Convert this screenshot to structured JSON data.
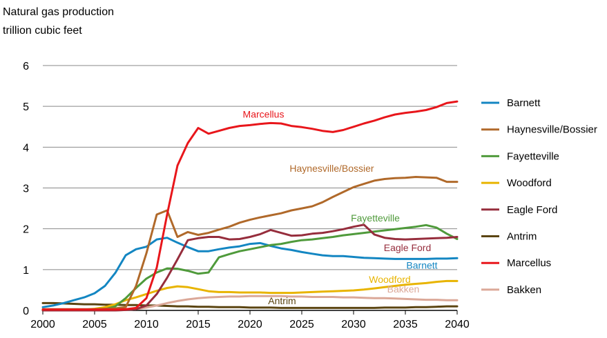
{
  "header": {
    "title": "Natural gas production",
    "unit": "trillion cubic feet"
  },
  "colors": {
    "Barnett": "#1386c2",
    "Haynesville/Bossier": "#b0692a",
    "Fayetteville": "#4f9a3b",
    "Woodford": "#e8b400",
    "Eagle Ford": "#962d3c",
    "Antrim": "#5a4410",
    "Marcellus": "#e8161b",
    "Bakken": "#dba898"
  },
  "chart_data": {
    "type": "line",
    "title": "Natural gas production",
    "ylabel": "trillion cubic feet",
    "xlabel": "",
    "xlim": [
      2000,
      2040
    ],
    "ylim": [
      0,
      6
    ],
    "grid": true,
    "legend_position": "right",
    "x_ticks": [
      "2000",
      "2005",
      "2010",
      "2015",
      "2020",
      "2025",
      "2030",
      "2035",
      "2040"
    ],
    "y_ticks": [
      "0",
      "1",
      "2",
      "3",
      "4",
      "5",
      "6"
    ],
    "x": [
      2000,
      2001,
      2002,
      2003,
      2004,
      2005,
      2006,
      2007,
      2008,
      2009,
      2010,
      2011,
      2012,
      2013,
      2014,
      2015,
      2016,
      2017,
      2018,
      2019,
      2020,
      2021,
      2022,
      2023,
      2024,
      2025,
      2026,
      2027,
      2028,
      2029,
      2030,
      2031,
      2032,
      2033,
      2034,
      2035,
      2036,
      2037,
      2038,
      2039,
      2040
    ],
    "series": [
      {
        "name": "Barnett",
        "values": [
          0.08,
          0.12,
          0.18,
          0.25,
          0.32,
          0.42,
          0.6,
          0.92,
          1.35,
          1.5,
          1.56,
          1.74,
          1.78,
          1.66,
          1.55,
          1.45,
          1.45,
          1.5,
          1.54,
          1.57,
          1.63,
          1.65,
          1.58,
          1.52,
          1.48,
          1.43,
          1.39,
          1.35,
          1.33,
          1.33,
          1.31,
          1.29,
          1.28,
          1.27,
          1.26,
          1.26,
          1.26,
          1.26,
          1.27,
          1.27,
          1.28
        ]
      },
      {
        "name": "Haynesville/Bossier",
        "values": [
          0.03,
          0.03,
          0.03,
          0.03,
          0.03,
          0.03,
          0.04,
          0.05,
          0.08,
          0.6,
          1.4,
          2.35,
          2.45,
          1.8,
          1.92,
          1.85,
          1.9,
          1.98,
          2.05,
          2.15,
          2.22,
          2.28,
          2.33,
          2.38,
          2.45,
          2.5,
          2.55,
          2.65,
          2.78,
          2.9,
          3.02,
          3.1,
          3.18,
          3.22,
          3.24,
          3.25,
          3.27,
          3.26,
          3.25,
          3.15,
          3.15
        ]
      },
      {
        "name": "Fayetteville",
        "values": [
          0.0,
          0.0,
          0.0,
          0.0,
          0.0,
          0.01,
          0.03,
          0.1,
          0.3,
          0.55,
          0.78,
          0.93,
          1.03,
          1.02,
          0.97,
          0.9,
          0.93,
          1.3,
          1.38,
          1.45,
          1.5,
          1.55,
          1.6,
          1.63,
          1.68,
          1.72,
          1.74,
          1.77,
          1.8,
          1.84,
          1.87,
          1.9,
          1.93,
          1.96,
          1.99,
          2.02,
          2.05,
          2.09,
          2.03,
          1.88,
          1.75
        ]
      },
      {
        "name": "Woodford",
        "values": [
          0.0,
          0.0,
          0.0,
          0.01,
          0.02,
          0.04,
          0.08,
          0.15,
          0.25,
          0.32,
          0.4,
          0.48,
          0.55,
          0.59,
          0.57,
          0.52,
          0.47,
          0.45,
          0.45,
          0.44,
          0.44,
          0.44,
          0.43,
          0.43,
          0.43,
          0.44,
          0.45,
          0.46,
          0.47,
          0.48,
          0.49,
          0.51,
          0.54,
          0.57,
          0.6,
          0.63,
          0.65,
          0.67,
          0.7,
          0.72,
          0.72
        ]
      },
      {
        "name": "Eagle Ford",
        "values": [
          0.0,
          0.0,
          0.0,
          0.0,
          0.0,
          0.0,
          0.0,
          0.0,
          0.01,
          0.03,
          0.12,
          0.4,
          0.8,
          1.25,
          1.72,
          1.77,
          1.8,
          1.8,
          1.74,
          1.75,
          1.8,
          1.87,
          1.97,
          1.9,
          1.83,
          1.84,
          1.88,
          1.9,
          1.94,
          1.99,
          2.05,
          2.1,
          1.86,
          1.78,
          1.75,
          1.74,
          1.75,
          1.76,
          1.77,
          1.78,
          1.8
        ]
      },
      {
        "name": "Antrim",
        "values": [
          0.18,
          0.18,
          0.17,
          0.16,
          0.15,
          0.15,
          0.14,
          0.14,
          0.13,
          0.13,
          0.12,
          0.12,
          0.11,
          0.1,
          0.1,
          0.09,
          0.09,
          0.08,
          0.08,
          0.08,
          0.07,
          0.07,
          0.07,
          0.06,
          0.06,
          0.06,
          0.06,
          0.06,
          0.06,
          0.06,
          0.06,
          0.06,
          0.06,
          0.07,
          0.07,
          0.07,
          0.08,
          0.08,
          0.09,
          0.1,
          0.1
        ]
      },
      {
        "name": "Marcellus",
        "values": [
          0.02,
          0.02,
          0.02,
          0.02,
          0.02,
          0.02,
          0.02,
          0.02,
          0.03,
          0.06,
          0.3,
          1.05,
          2.35,
          3.55,
          4.1,
          4.47,
          4.33,
          4.4,
          4.47,
          4.52,
          4.54,
          4.57,
          4.59,
          4.58,
          4.52,
          4.49,
          4.45,
          4.4,
          4.37,
          4.42,
          4.5,
          4.58,
          4.65,
          4.73,
          4.8,
          4.84,
          4.87,
          4.91,
          4.98,
          5.08,
          5.12
        ]
      },
      {
        "name": "Bakken",
        "values": [
          0.0,
          0.0,
          0.0,
          0.0,
          0.0,
          0.0,
          0.0,
          0.0,
          0.01,
          0.03,
          0.07,
          0.12,
          0.18,
          0.23,
          0.27,
          0.3,
          0.32,
          0.33,
          0.34,
          0.34,
          0.35,
          0.35,
          0.35,
          0.35,
          0.34,
          0.34,
          0.33,
          0.33,
          0.33,
          0.32,
          0.32,
          0.31,
          0.3,
          0.3,
          0.29,
          0.28,
          0.27,
          0.26,
          0.26,
          0.25,
          0.25
        ]
      }
    ],
    "legend": [
      "Barnett",
      "Haynesville/Bossier",
      "Fayetteville",
      "Woodford",
      "Eagle Ford",
      "Antrim",
      "Marcellus",
      "Bakken"
    ],
    "annotations": [
      {
        "text": "Marcellus",
        "series": "Marcellus",
        "x": 2021.3,
        "y": 4.72
      },
      {
        "text": "Haynesville/Bossier",
        "series": "Haynesville/Bossier",
        "x": 2027.9,
        "y": 3.4
      },
      {
        "text": "Fayetteville",
        "series": "Fayetteville",
        "x": 2032.1,
        "y": 2.18
      },
      {
        "text": "Eagle Ford",
        "series": "Eagle Ford",
        "x": 2035.2,
        "y": 1.45
      },
      {
        "text": "Barnett",
        "series": "Barnett",
        "x": 2036.6,
        "y": 1.02
      },
      {
        "text": "Woodford",
        "series": "Woodford",
        "x": 2033.5,
        "y": 0.68
      },
      {
        "text": "Bakken",
        "series": "Bakken",
        "x": 2034.8,
        "y": 0.44
      },
      {
        "text": "Antrim",
        "series": "Antrim",
        "x": 2023.1,
        "y": 0.15
      }
    ]
  }
}
